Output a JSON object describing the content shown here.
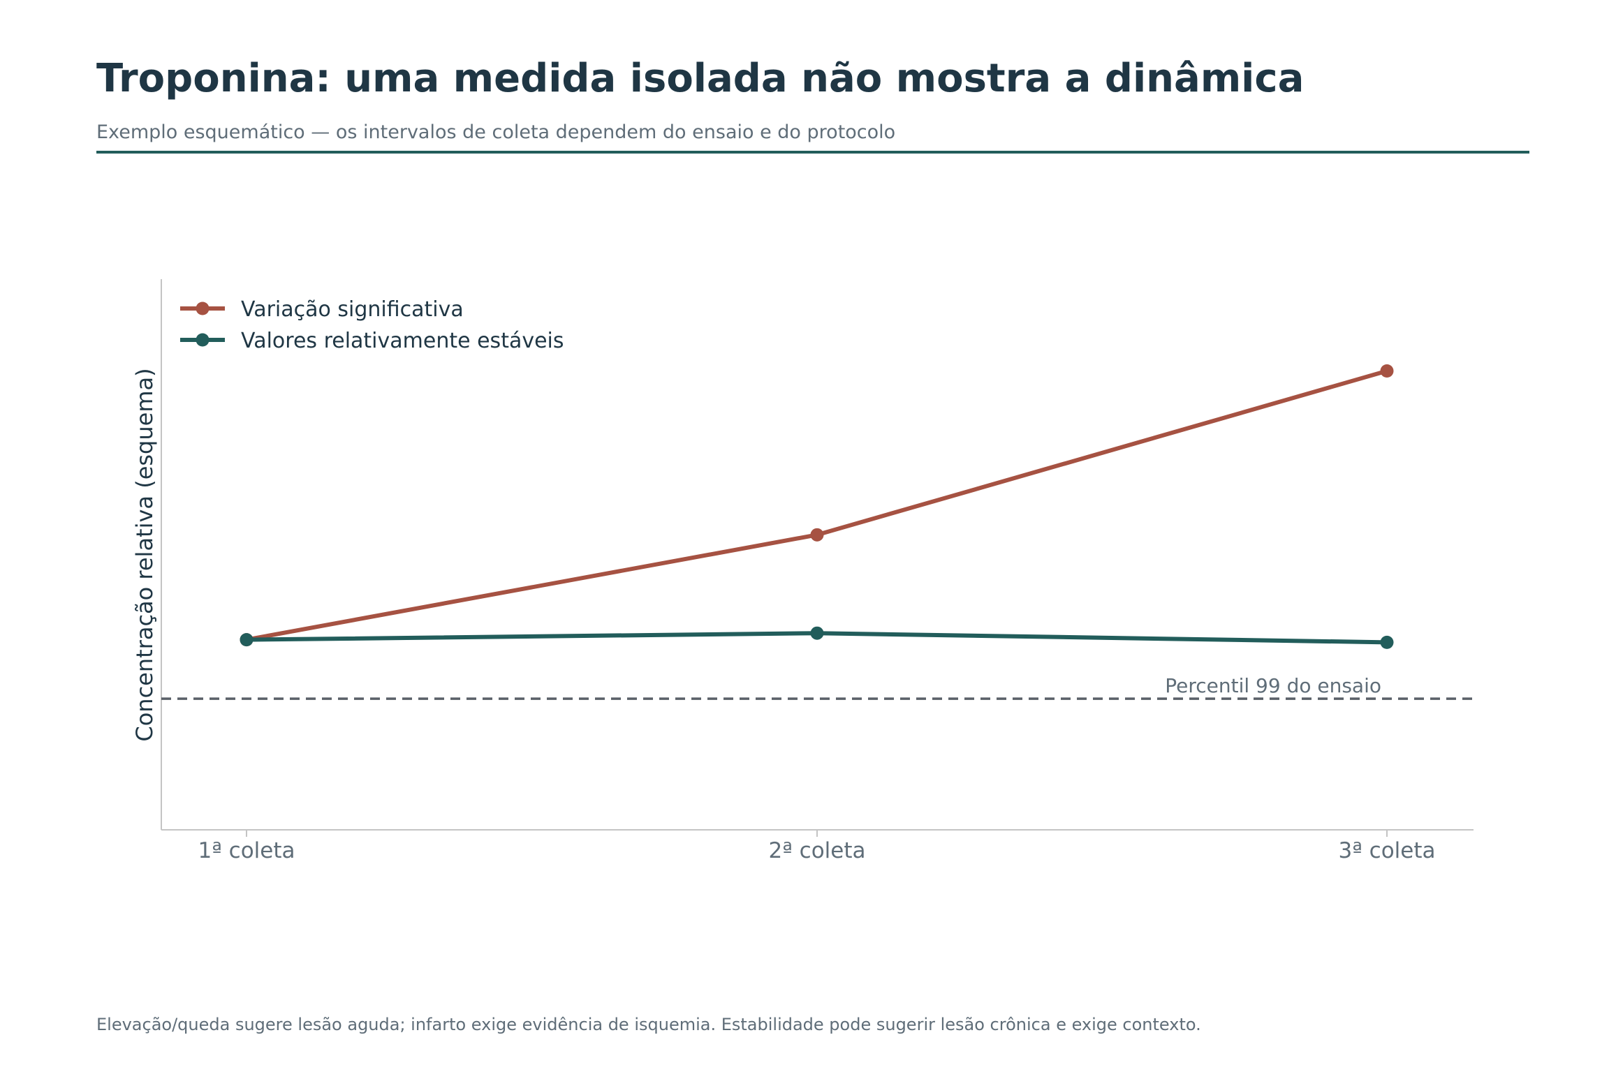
{
  "title": "Troponina: uma medida isolada não mostra a dinâmica",
  "subtitle": "Exemplo esquemático — os intervalos de coleta dependem do ensaio e do protocolo",
  "footnote": "Elevação/queda sugere lesão aguda; infarto exige evidência de isquemia. Estabilidade pode sugerir lesão crônica e exige contexto.",
  "colors": {
    "accent": "#225d5b",
    "rise": "#a65242",
    "stable": "#225d5b",
    "reference": "#5a6068",
    "text_dark": "#1f3644",
    "text_muted": "#5f6d78"
  },
  "chart_data": {
    "type": "line",
    "categories": [
      "1ª coleta",
      "2ª coleta",
      "3ª coleta"
    ],
    "ylabel": "Concentração relativa (esquema)",
    "xlabel": "",
    "ylim": [
      0,
      4.2
    ],
    "legend_position": "top-left",
    "grid": false,
    "series": [
      {
        "name": "Variação significativa",
        "values": [
          1.45,
          2.25,
          3.5
        ],
        "color": "#a65242"
      },
      {
        "name": "Valores relativamente estáveis",
        "values": [
          1.45,
          1.5,
          1.43
        ],
        "color": "#225d5b"
      }
    ],
    "reference_line": {
      "value": 1.0,
      "label": "Percentil 99 do ensaio",
      "style": "dashed"
    }
  }
}
